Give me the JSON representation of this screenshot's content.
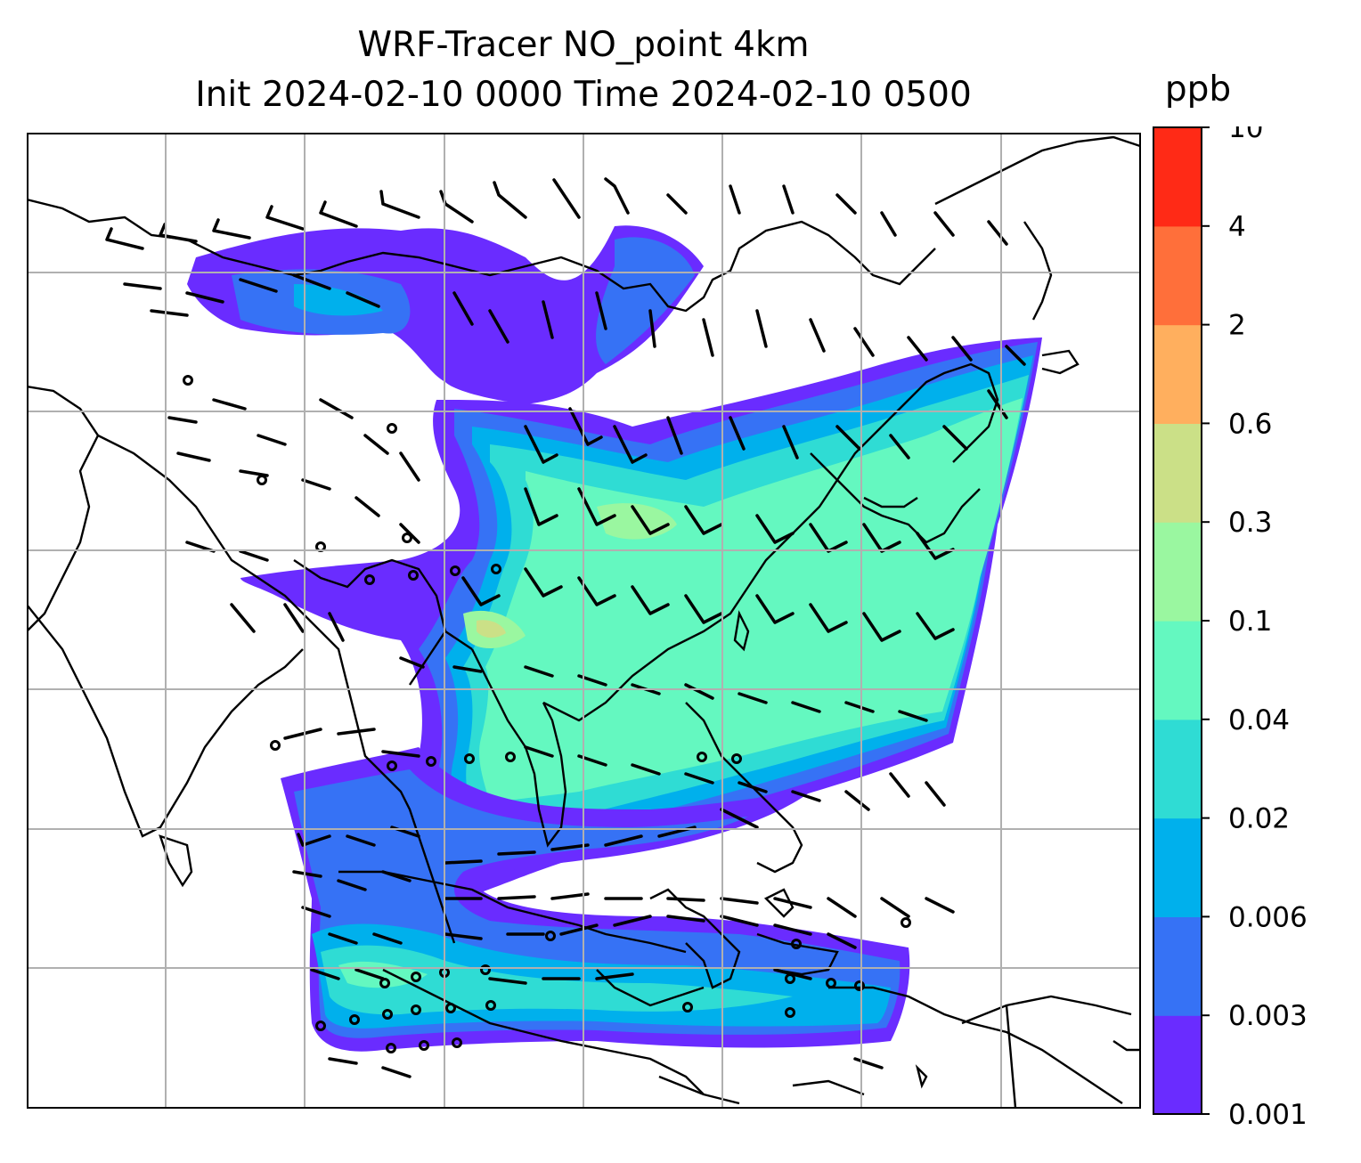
{
  "title": {
    "line1": "WRF-Tracer NO_point 4km",
    "line2": "Init 2024-02-10 0000 Time 2024-02-10 0500"
  },
  "colorbar": {
    "unit": "ppb",
    "levels": [
      "0.001",
      "0.003",
      "0.006",
      "0.02",
      "0.04",
      "0.1",
      "0.3",
      "0.6",
      "2",
      "4",
      "10"
    ],
    "colors": [
      "#6a2cff",
      "#3672f5",
      "#00b0ec",
      "#2fdcd4",
      "#64f8c0",
      "#9af7a0",
      "#cbe087",
      "#ffaf5e",
      "#ff6f3a",
      "#ff2a16"
    ]
  },
  "map": {
    "coastline_color": "#000000",
    "grid_color": "#b0b0b0"
  },
  "chart_data": {
    "type": "heatmap",
    "variable": "NO_point",
    "unit": "ppb",
    "level_bounds": [
      0.001,
      0.003,
      0.006,
      0.02,
      0.04,
      0.1,
      0.3,
      0.6,
      2,
      4,
      10
    ],
    "grid_lines": "on",
    "overlay": "wind barbs",
    "legend": "colorbar right"
  }
}
